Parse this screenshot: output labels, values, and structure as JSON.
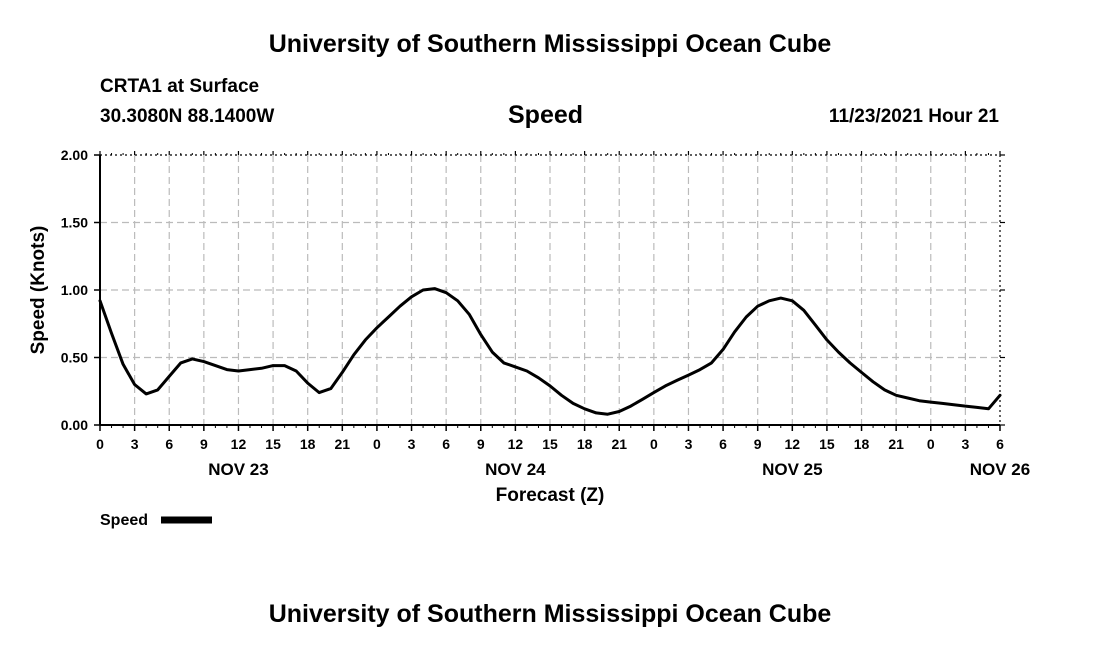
{
  "header": {
    "title": "University of Southern Mississippi Ocean Cube",
    "station": "CRTA1 at Surface",
    "coords": "30.3080N  88.1400W",
    "chart_title": "Speed",
    "datetime": "11/23/2021 Hour 21"
  },
  "footer": {
    "title": "University of Southern Mississippi Ocean Cube"
  },
  "colors": {
    "line": "#000000",
    "grid": "#bbbbbb"
  },
  "chart_data": {
    "type": "line",
    "title": "Speed",
    "xlabel": "Forecast (Z)",
    "ylabel": "Speed (Knots)",
    "ylim": [
      0,
      2
    ],
    "xlim": [
      0,
      78
    ],
    "yticks": [
      "0.00",
      "0.50",
      "1.00",
      "1.50",
      "2.00"
    ],
    "ytick_values": [
      0,
      0.5,
      1.0,
      1.5,
      2.0
    ],
    "xtick_labels": [
      "0",
      "3",
      "6",
      "9",
      "12",
      "15",
      "18",
      "21",
      "0",
      "3",
      "6",
      "9",
      "12",
      "15",
      "18",
      "21",
      "0",
      "3",
      "6",
      "9",
      "12",
      "15",
      "18",
      "21",
      "0",
      "3",
      "6"
    ],
    "date_labels": [
      {
        "label": "NOV 23",
        "hour": 12
      },
      {
        "label": "NOV 24",
        "hour": 36
      },
      {
        "label": "NOV 25",
        "hour": 60
      },
      {
        "label": "NOV 26",
        "hour": 78
      }
    ],
    "grid": true,
    "legend": "bottom-left",
    "series": [
      {
        "name": "Speed",
        "x": [
          0,
          1,
          2,
          3,
          4,
          5,
          6,
          7,
          8,
          9,
          10,
          11,
          12,
          13,
          14,
          15,
          16,
          17,
          18,
          19,
          20,
          21,
          22,
          23,
          24,
          25,
          26,
          27,
          28,
          29,
          30,
          31,
          32,
          33,
          34,
          35,
          36,
          37,
          38,
          39,
          40,
          41,
          42,
          43,
          44,
          45,
          46,
          47,
          48,
          49,
          50,
          51,
          52,
          53,
          54,
          55,
          56,
          57,
          58,
          59,
          60,
          61,
          62,
          63,
          64,
          65,
          66,
          67,
          68,
          69,
          70,
          71,
          72,
          73,
          74,
          75,
          76,
          77,
          78
        ],
        "values": [
          0.92,
          0.68,
          0.45,
          0.3,
          0.23,
          0.26,
          0.36,
          0.46,
          0.49,
          0.47,
          0.44,
          0.41,
          0.4,
          0.41,
          0.42,
          0.44,
          0.44,
          0.4,
          0.31,
          0.24,
          0.27,
          0.39,
          0.52,
          0.63,
          0.72,
          0.8,
          0.88,
          0.95,
          1.0,
          1.01,
          0.98,
          0.92,
          0.82,
          0.67,
          0.54,
          0.46,
          0.43,
          0.4,
          0.35,
          0.29,
          0.22,
          0.16,
          0.12,
          0.09,
          0.08,
          0.1,
          0.14,
          0.19,
          0.24,
          0.29,
          0.33,
          0.37,
          0.41,
          0.46,
          0.56,
          0.69,
          0.8,
          0.88,
          0.92,
          0.94,
          0.92,
          0.85,
          0.74,
          0.63,
          0.54,
          0.46,
          0.39,
          0.32,
          0.26,
          0.22,
          0.2,
          0.18,
          0.17,
          0.16,
          0.15,
          0.14,
          0.13,
          0.12,
          0.22
        ]
      }
    ]
  }
}
